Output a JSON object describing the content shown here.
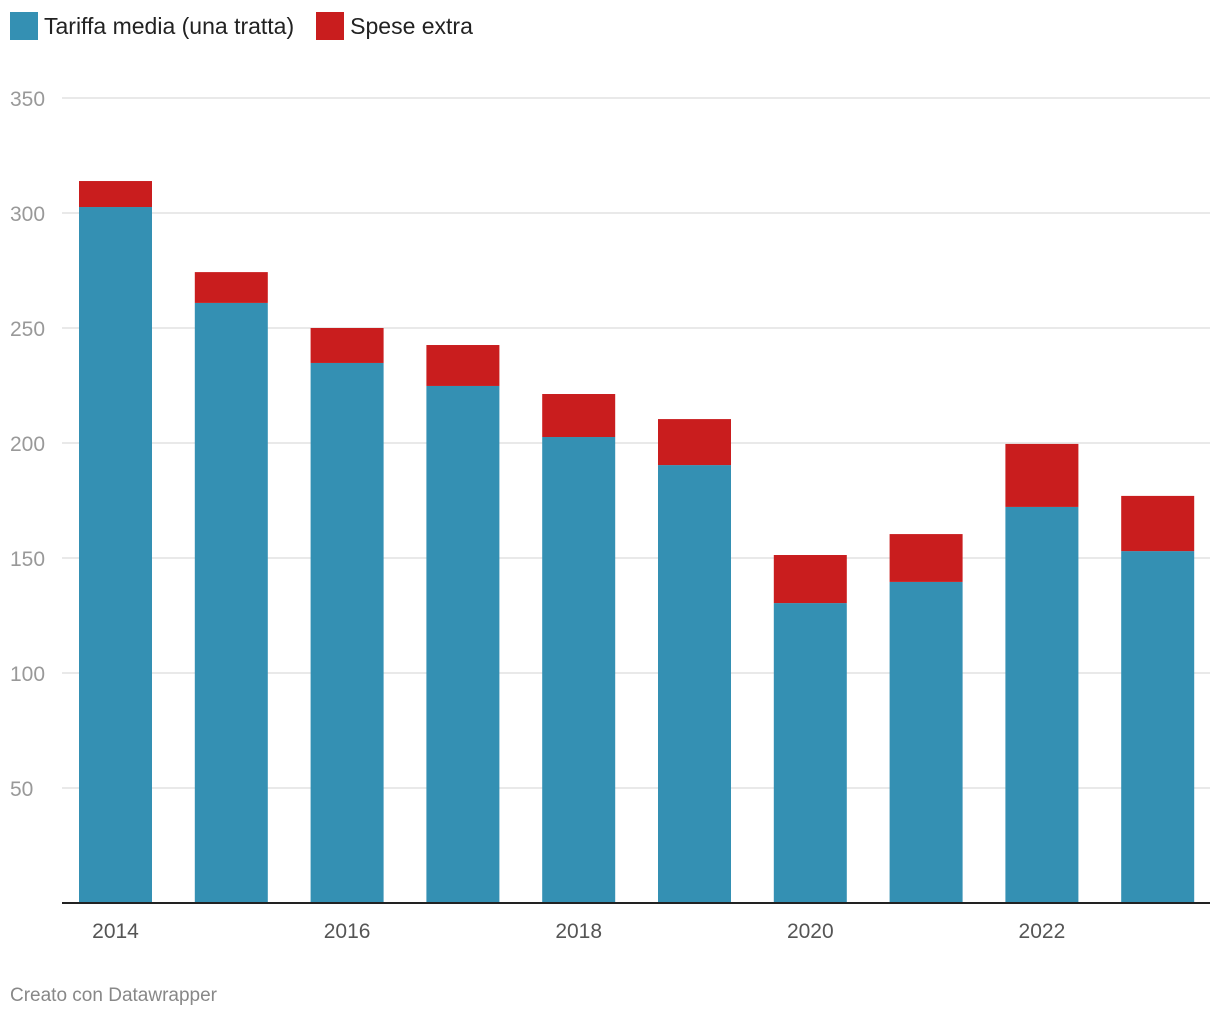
{
  "chart_data": {
    "type": "bar",
    "stacked": true,
    "categories": [
      "2014",
      "2015",
      "2016",
      "2017",
      "2018",
      "2019",
      "2020",
      "2021",
      "2022",
      "2023"
    ],
    "x_tick_labels": [
      "2014",
      "2016",
      "2018",
      "2020",
      "2022"
    ],
    "series": [
      {
        "name": "Tariffa media (una tratta)",
        "color": "#3490b3",
        "values": [
          302.6,
          260.9,
          234.8,
          224.8,
          202.6,
          190.4,
          130.4,
          139.6,
          172.2,
          153.0
        ]
      },
      {
        "name": "Spese extra",
        "color": "#c91d1e",
        "values": [
          11.3,
          13.4,
          15.2,
          17.8,
          18.7,
          20.0,
          20.9,
          20.8,
          27.4,
          24.0
        ]
      }
    ],
    "ylim": [
      0,
      350
    ],
    "y_ticks": [
      50,
      100,
      150,
      200,
      250,
      300,
      350
    ],
    "grid": true,
    "legend_position": "top-left"
  },
  "footer": "Creato con Datawrapper"
}
